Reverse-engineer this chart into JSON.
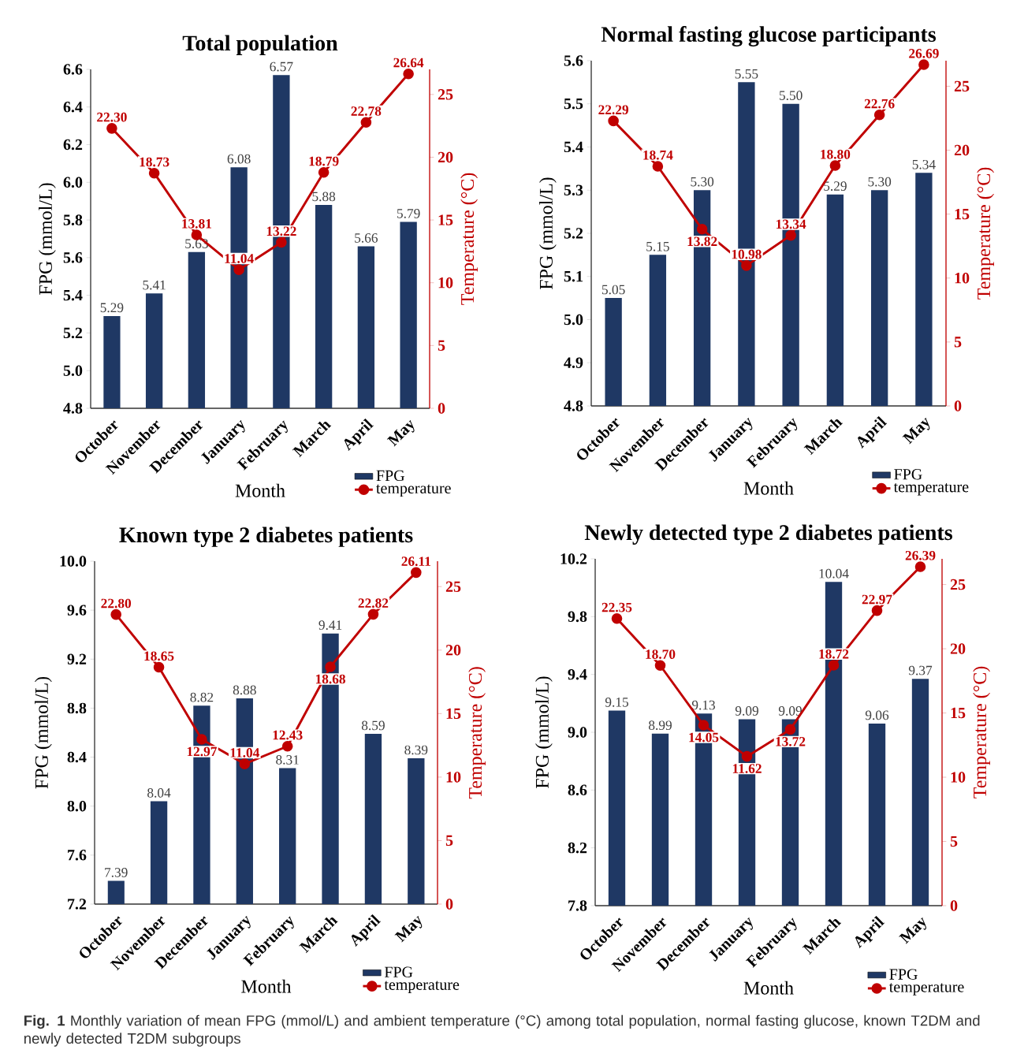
{
  "chart_data": [
    {
      "type": "bar",
      "title": "Total population",
      "xlabel": "Month",
      "ylabel": "FPG (mmol/L)",
      "y2label": "Temperature (°C)",
      "legend": "bottom right",
      "categories": [
        "October",
        "November",
        "December",
        "January",
        "February",
        "March",
        "April",
        "May"
      ],
      "ylim": [
        4.8,
        6.6
      ],
      "yticks": [
        4.8,
        {
          "value": 5,
          "label": "5.0"
        },
        5.2,
        5.4,
        5.6,
        5.8,
        {
          "value": 6,
          "label": "6.0"
        },
        6.2,
        6.4,
        6.6
      ],
      "y2lim": [
        0,
        27
      ],
      "y2ticks": [
        0,
        5,
        10,
        15,
        20,
        25
      ],
      "series": [
        {
          "name": "FPG",
          "color": "#1f3864",
          "values": [
            5.29,
            5.41,
            5.63,
            6.08,
            6.57,
            5.88,
            5.66,
            5.79
          ],
          "value_labels": [
            "5.29",
            "5.41",
            "5.63",
            "6.08",
            "6.57",
            "5.88",
            "5.66",
            "5.79"
          ]
        },
        {
          "name": "temperature",
          "type": "line",
          "axis": "y2",
          "marker": "circle",
          "color": "#c00000",
          "values": [
            22.3,
            18.73,
            13.81,
            11.04,
            13.22,
            18.79,
            22.78,
            26.64
          ],
          "value_labels": [
            "22.30",
            "18.73",
            "13.81",
            "11.04",
            "13.22",
            "18.79",
            "22.78",
            "26.64"
          ]
        }
      ]
    },
    {
      "type": "bar",
      "title": "Normal fasting glucose participants",
      "xlabel": "Month",
      "ylabel": "FPG (mmol/L)",
      "y2label": "Temperature (°C)",
      "legend": "bottom right",
      "categories": [
        "October",
        "November",
        "December",
        "January",
        "February",
        "March",
        "April",
        "May"
      ],
      "ylim": [
        4.8,
        5.6
      ],
      "yticks": [
        4.8,
        4.9,
        {
          "value": 5,
          "label": "5.0"
        },
        5.1,
        5.2,
        5.3,
        5.4,
        5.5,
        5.6
      ],
      "y2lim": [
        0,
        27
      ],
      "y2ticks": [
        0,
        5,
        10,
        15,
        20,
        25
      ],
      "series": [
        {
          "name": "FPG",
          "color": "#1f3864",
          "values": [
            5.05,
            5.15,
            5.3,
            5.55,
            5.5,
            5.29,
            5.3,
            5.34
          ],
          "value_labels": [
            "5.05",
            "5.15",
            "5.30",
            "5.55",
            "5.50",
            "5.29",
            "5.30",
            "5.34"
          ]
        },
        {
          "name": "temperature",
          "type": "line",
          "axis": "y2",
          "marker": "circle",
          "color": "#c00000",
          "values": [
            22.29,
            18.74,
            13.82,
            10.98,
            13.34,
            18.8,
            22.76,
            26.69
          ],
          "value_labels": [
            "22.29",
            "18.74",
            "13.82",
            "10.98",
            "13.34",
            "18.80",
            "22.76",
            "26.69"
          ]
        }
      ]
    },
    {
      "type": "bar",
      "title": "Known type 2 diabetes patients",
      "xlabel": "Month",
      "ylabel": "FPG (mmol/L)",
      "y2label": "Temperature (°C)",
      "legend": "bottom right",
      "categories": [
        "October",
        "November",
        "December",
        "January",
        "February",
        "March",
        "April",
        "May"
      ],
      "ylim": [
        7.2,
        10
      ],
      "yticks": [
        7.2,
        7.6,
        {
          "value": 8,
          "label": "8.0"
        },
        8.4,
        8.8,
        9.2,
        9.6,
        {
          "value": 10,
          "label": "10.0"
        }
      ],
      "y2lim": [
        0,
        27
      ],
      "y2ticks": [
        0,
        5,
        10,
        15,
        20,
        25
      ],
      "series": [
        {
          "name": "FPG",
          "color": "#1f3864",
          "values": [
            7.39,
            8.04,
            8.82,
            8.88,
            8.31,
            9.41,
            8.59,
            8.39
          ],
          "value_labels": [
            "7.39",
            "8.04",
            "8.82",
            "8.88",
            "8.31",
            "9.41",
            "8.59",
            "8.39"
          ]
        },
        {
          "name": "temperature",
          "type": "line",
          "axis": "y2",
          "marker": "circle",
          "color": "#c00000",
          "values": [
            22.8,
            18.65,
            12.97,
            11.04,
            12.43,
            18.68,
            22.82,
            26.11
          ],
          "value_labels": [
            "22.80",
            "18.65",
            "12.97",
            "11.04",
            "12.43",
            "18.68",
            "22.82",
            "26.11"
          ]
        }
      ]
    },
    {
      "type": "bar",
      "title": "Newly detected type 2 diabetes patients",
      "xlabel": "Month",
      "ylabel": "FPG (mmol/L)",
      "y2label": "Temperature (°C)",
      "legend": "bottom right",
      "categories": [
        "October",
        "November",
        "December",
        "January",
        "February",
        "March",
        "April",
        "May"
      ],
      "ylim": [
        7.8,
        10.2
      ],
      "yticks": [
        7.8,
        8.2,
        8.6,
        {
          "value": 9,
          "label": "9.0"
        },
        9.4,
        9.8,
        10.2
      ],
      "y2lim": [
        0,
        27
      ],
      "y2ticks": [
        0,
        5,
        10,
        15,
        20,
        25
      ],
      "series": [
        {
          "name": "FPG",
          "color": "#1f3864",
          "values": [
            9.15,
            8.99,
            9.13,
            9.09,
            9.09,
            10.04,
            9.06,
            9.37
          ],
          "value_labels": [
            "9.15",
            "8.99",
            "9.13",
            "9.09",
            "9.09",
            "10.04",
            "9.06",
            "9.37"
          ]
        },
        {
          "name": "temperature",
          "type": "line",
          "axis": "y2",
          "marker": "circle",
          "color": "#c00000",
          "values": [
            22.35,
            18.7,
            14.05,
            11.62,
            13.72,
            18.72,
            22.97,
            26.39
          ],
          "value_labels": [
            "22.35",
            "18.70",
            "14.05",
            "11.62",
            "13.72",
            "18.72",
            "22.97",
            "26.39"
          ]
        }
      ],
      "annotations": [
        "**Fig. 1** Monthly variation of mean FPG (mmol/L) and ambient temperature (°C) among total population, normal fasting glucose, known T2DM and newly detected T2DM subgroups"
      ]
    }
  ]
}
